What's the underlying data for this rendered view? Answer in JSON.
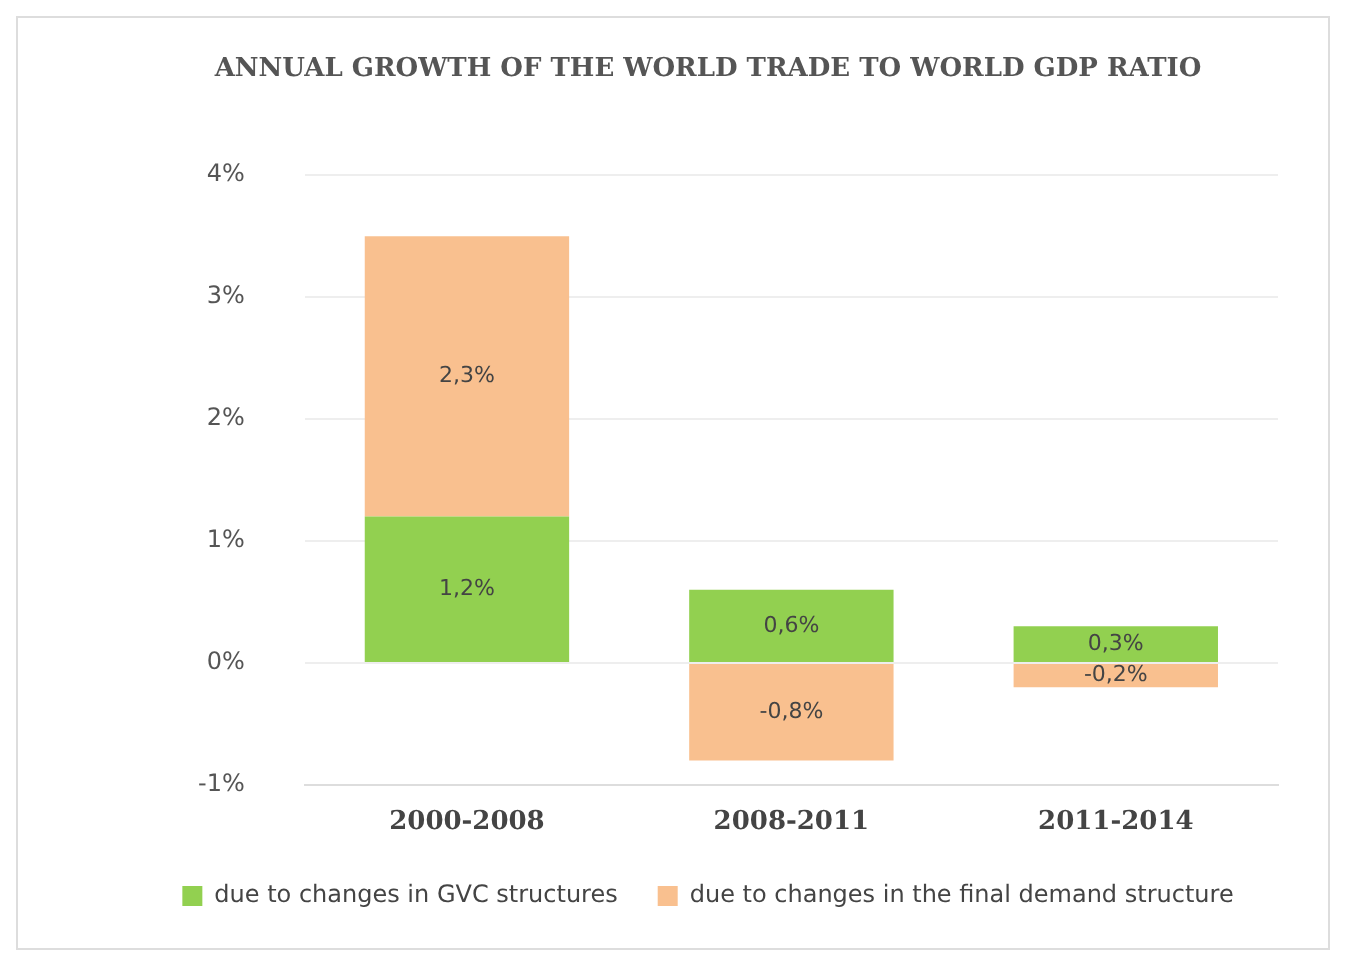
{
  "chart_data": {
    "type": "bar",
    "title": "ANNUAL GROWTH OF THE WORLD TRADE TO WORLD GDP RATIO",
    "categories": [
      "2000-2008",
      "2008-2011",
      "2011-2014"
    ],
    "stacked": true,
    "series": [
      {
        "name": "due to changes in GVC structures",
        "color": "#92d050",
        "values": [
          1.2,
          0.6,
          0.3
        ],
        "value_labels": [
          "1,2%",
          "0,6%",
          "0,3%"
        ]
      },
      {
        "name": "due to changes in the final demand structure",
        "color": "#f9c08f",
        "values": [
          2.3,
          -0.8,
          -0.2
        ],
        "value_labels": [
          "2,3%",
          "-0,8%",
          "-0,2%"
        ]
      }
    ],
    "ylim": [
      -1,
      4
    ],
    "yticks": [
      {
        "value": -1,
        "label": "-1%"
      },
      {
        "value": 0,
        "label": "0%"
      },
      {
        "value": 1,
        "label": "1%"
      },
      {
        "value": 2,
        "label": "2%"
      },
      {
        "value": 3,
        "label": "3%"
      },
      {
        "value": 4,
        "label": "4%"
      }
    ],
    "grid": "y",
    "legend": "bottom"
  }
}
